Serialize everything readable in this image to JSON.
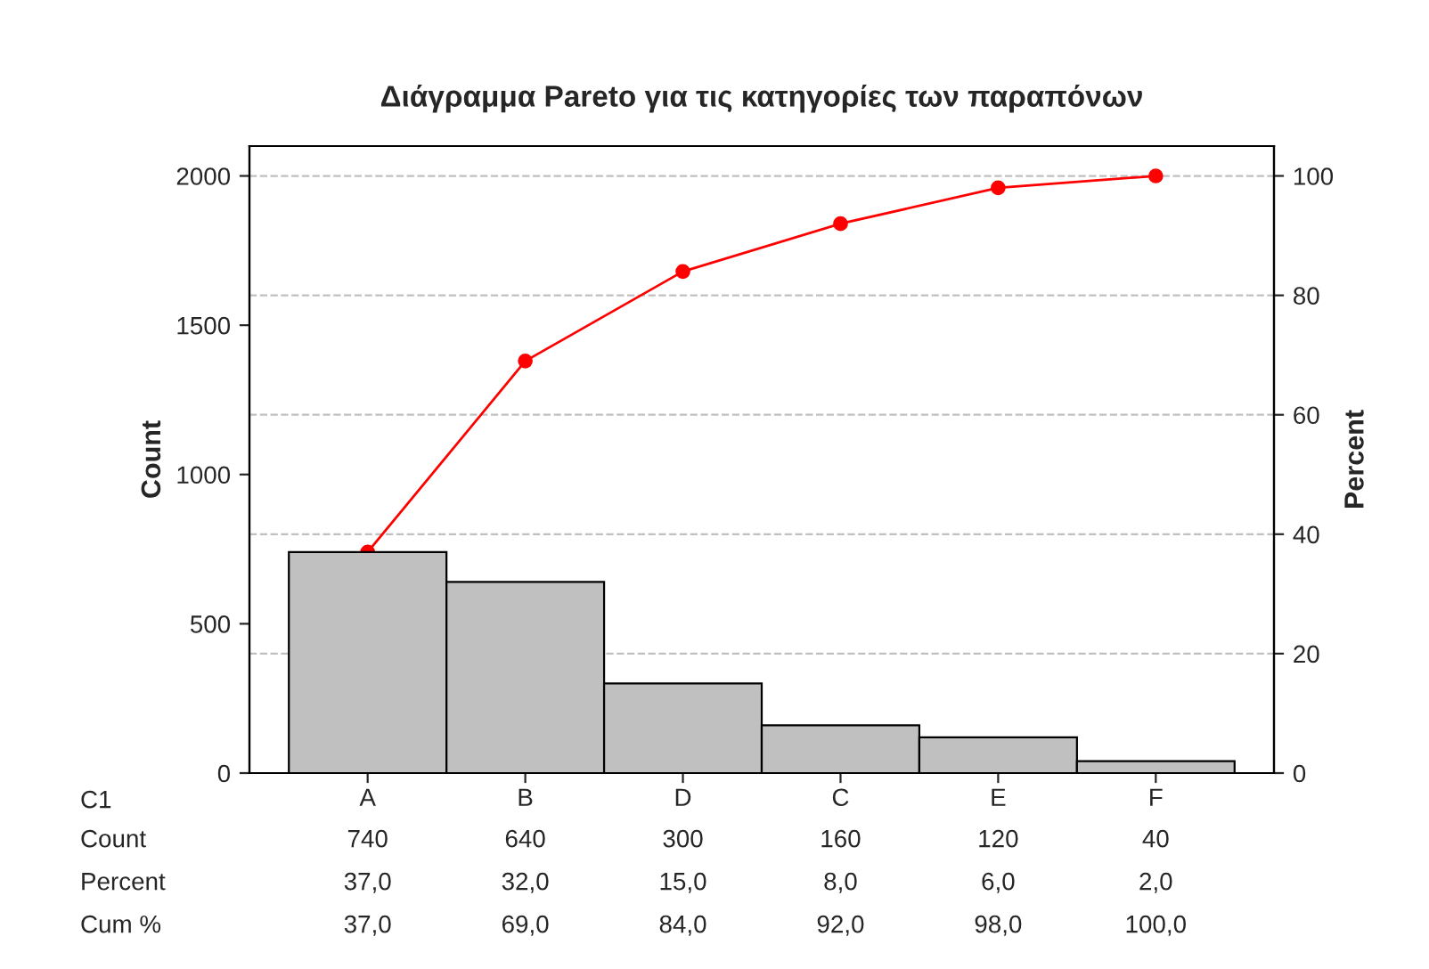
{
  "chart_data": {
    "type": "bar",
    "title": "Διάγραμμα Pareto για τις κατηγορίες των παραπόνων",
    "xlabel": "C1",
    "ylabel": "Count",
    "y2label": "Percent",
    "categories": [
      "A",
      "B",
      "D",
      "C",
      "E",
      "F"
    ],
    "series": [
      {
        "color": "#c0c0c0",
        "values": [
          740,
          640,
          300,
          160,
          120,
          40
        ],
        "value_labels": [
          "740",
          "640",
          "300",
          "160",
          "120",
          "40"
        ]
      },
      {
        "type": "line",
        "axis": "y2",
        "color": "#ff0000",
        "values": [
          37.0,
          69.0,
          84.0,
          92.0,
          98.0,
          100.0
        ],
        "value_labels": [
          "37,0",
          "69,0",
          "84,0",
          "92,0",
          "98,0",
          "100,0"
        ]
      }
    ],
    "ylim": [
      0,
      2100
    ],
    "yticks": [
      0,
      500,
      1000,
      1500,
      2000
    ],
    "y2lim": [
      0,
      105
    ],
    "y2ticks": [
      0,
      20,
      40,
      60,
      80,
      100
    ],
    "annotations": [
      "Count",
      "Percent",
      "37,0",
      "32,0",
      "15,0",
      "8,0",
      "6,0",
      "2,0",
      "Cum %"
    ],
    "grid": "y2",
    "marker": "circle",
    "line_style": "solid",
    "legend": false
  }
}
